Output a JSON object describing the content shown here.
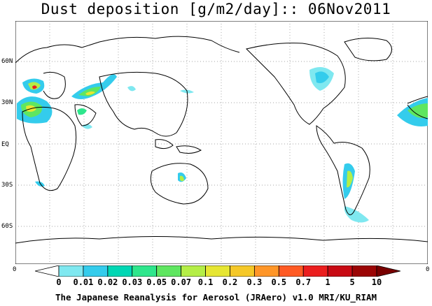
{
  "title": "Dust deposition [g/m2/day]:: 06Nov2011",
  "lat_labels": [
    "60N",
    "30N",
    "EQ",
    "30S",
    "60S"
  ],
  "axis_corner_labels": [
    "0",
    "0"
  ],
  "colorbar": {
    "labels": [
      "0",
      "0.01",
      "0.02",
      "0.03",
      "0.05",
      "0.07",
      "0.1",
      "0.2",
      "0.3",
      "0.5",
      "0.7",
      "1",
      "5",
      "10"
    ],
    "colors": [
      "#ffffff",
      "#7fe8f0",
      "#34ccec",
      "#00d7b4",
      "#2ee68c",
      "#5fe660",
      "#b4ee46",
      "#e6e632",
      "#f5c828",
      "#ff9628",
      "#ff5a23",
      "#eb1e1e",
      "#c80a14",
      "#9b0505",
      "#780000"
    ]
  },
  "footer": "The Japanese Reanalysis for Aerosol (JRAero) v1.0 MRI/KU_RIAM"
}
